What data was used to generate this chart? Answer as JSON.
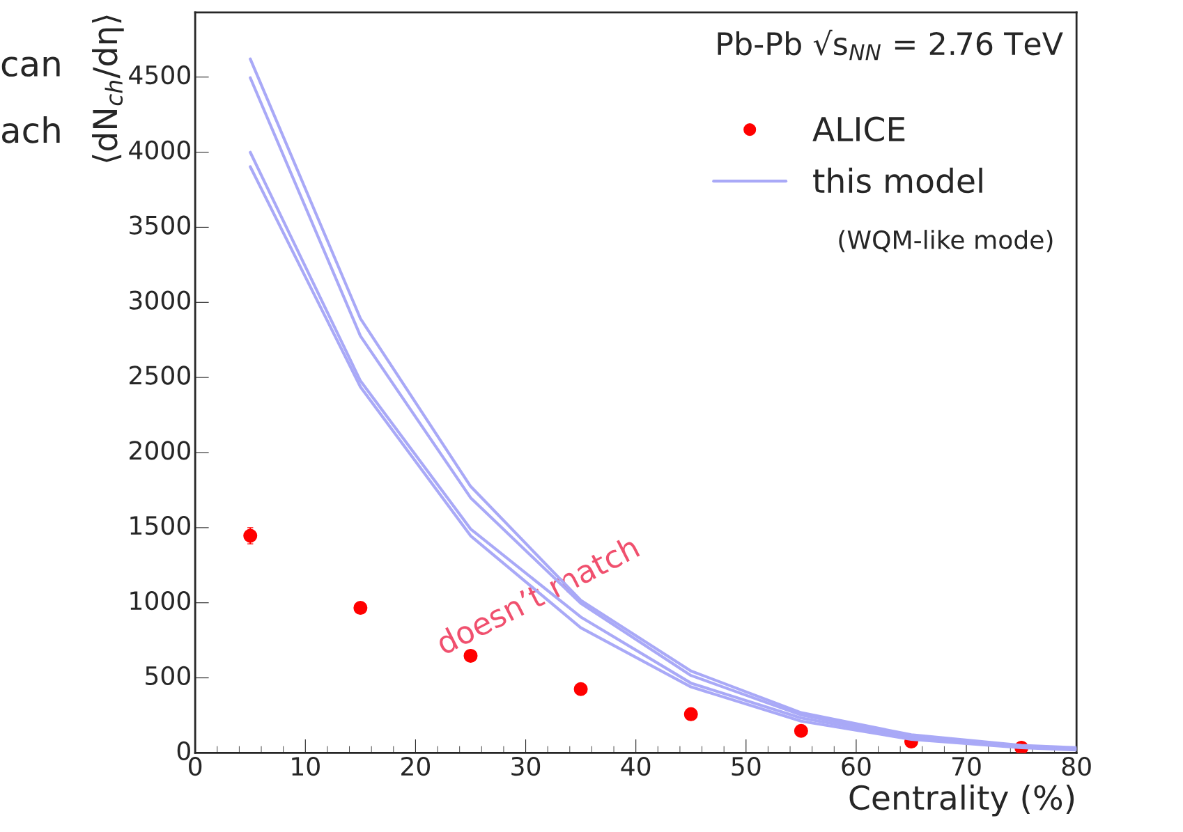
{
  "chart_data": {
    "type": "line",
    "xlabel": "Centrality (%)",
    "ylabel": "⟨dN$_{ch}$/dη⟩",
    "xlim": [
      0,
      80
    ],
    "ylim": [
      0,
      4930
    ],
    "xticks": [
      0,
      10,
      20,
      30,
      40,
      50,
      60,
      70,
      80
    ],
    "yticks": [
      0,
      500,
      1000,
      1500,
      2000,
      2500,
      3000,
      3500,
      4000,
      4500
    ],
    "grid": false,
    "legend": "top right",
    "series": [
      {
        "name": "ALICE",
        "type": "scatter",
        "marker": "circle",
        "color": "#ff0000",
        "x": [
          5,
          15,
          25,
          35,
          45,
          55,
          65,
          75
        ],
        "values": [
          1446,
          966,
          647,
          425,
          258,
          147,
          76,
          35
        ],
        "errors": [
          54,
          null,
          null,
          null,
          null,
          null,
          null,
          null
        ]
      },
      {
        "name": "this model",
        "type": "line",
        "color": "#a9a9f7",
        "x": [
          5,
          15,
          25,
          35,
          45,
          55,
          65,
          75,
          80
        ],
        "values": [
          4621,
          2892,
          1775,
          1016,
          546,
          268,
          121,
          50,
          35
        ]
      },
      {
        "type": "line",
        "color": "#a9a9f7",
        "x": [
          5,
          15,
          25,
          35,
          45,
          55,
          65,
          75,
          80
        ],
        "values": [
          4495,
          2776,
          1699,
          996,
          516,
          253,
          111,
          45,
          30
        ]
      },
      {
        "type": "line",
        "color": "#a9a9f7",
        "x": [
          5,
          15,
          25,
          35,
          45,
          55,
          65,
          75,
          80
        ],
        "values": [
          3999,
          2477,
          1491,
          905,
          465,
          233,
          101,
          40,
          25
        ]
      },
      {
        "type": "line",
        "color": "#a9a9f7",
        "x": [
          5,
          15,
          25,
          35,
          45,
          55,
          65,
          75,
          80
        ],
        "values": [
          3903,
          2437,
          1446,
          834,
          440,
          212,
          91,
          35,
          20
        ]
      }
    ],
    "annotations": [
      "Pb-Pb √s$_{NN}$ = 2.76 TeV",
      "(WQM-like mode)",
      "doesn’t match",
      "can",
      "ach"
    ]
  }
}
